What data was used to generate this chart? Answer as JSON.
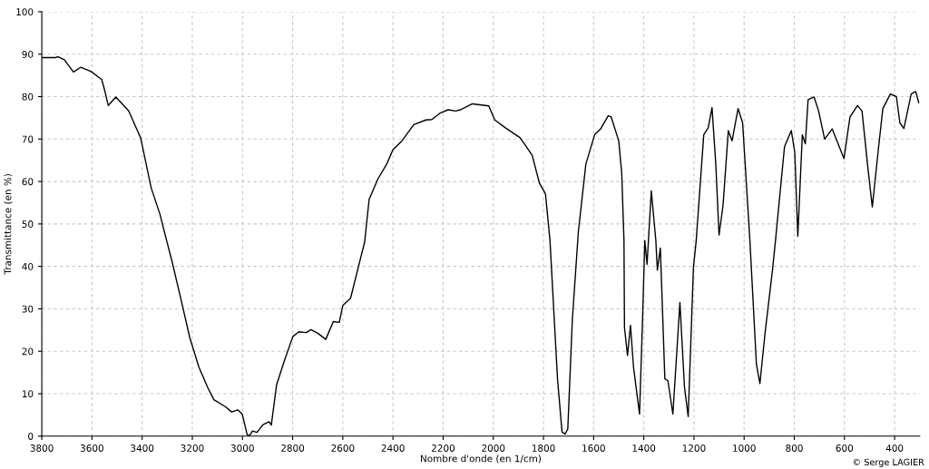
{
  "chart_data": {
    "type": "line",
    "xlabel": "Nombre d'onde (en 1/cm)",
    "ylabel": "Transmittance (en %)",
    "xlim": [
      3800,
      300
    ],
    "ylim": [
      0,
      100
    ],
    "xticks": [
      3800,
      3600,
      3400,
      3200,
      3000,
      2800,
      2600,
      2400,
      2200,
      2000,
      1800,
      1600,
      1400,
      1200,
      1000,
      800,
      600,
      400
    ],
    "yticks": [
      0,
      10,
      20,
      30,
      40,
      50,
      60,
      70,
      80,
      90,
      100
    ],
    "grid": true,
    "marker": "none",
    "line_style": "solid",
    "annotations": [
      "© Serge LAGIER"
    ],
    "series": [
      {
        "color": "#000000",
        "x": [
          3800,
          3745,
          3735,
          3710,
          3674,
          3645,
          3603,
          3561,
          3549,
          3535,
          3505,
          3454,
          3424,
          3406,
          3364,
          3329,
          3305,
          3281,
          3245,
          3210,
          3174,
          3138,
          3114,
          3067,
          3043,
          3019,
          3001,
          2981,
          2971,
          2960,
          2942,
          2918,
          2894,
          2885,
          2864,
          2834,
          2799,
          2775,
          2745,
          2727,
          2698,
          2668,
          2638,
          2614,
          2600,
          2569,
          2531,
          2513,
          2495,
          2460,
          2425,
          2400,
          2364,
          2317,
          2269,
          2245,
          2210,
          2180,
          2150,
          2131,
          2083,
          2018,
          1994,
          1953,
          1893,
          1845,
          1816,
          1792,
          1774,
          1744,
          1726,
          1714,
          1703,
          1685,
          1661,
          1631,
          1596,
          1572,
          1542,
          1530,
          1500,
          1488,
          1479,
          1477,
          1465,
          1453,
          1441,
          1417,
          1405,
          1396,
          1387,
          1370,
          1352,
          1346,
          1334,
          1316,
          1304,
          1284,
          1256,
          1238,
          1223,
          1202,
          1191,
          1161,
          1143,
          1128,
          1113,
          1100,
          1084,
          1063,
          1048,
          1024,
          1006,
          977,
          951,
          937,
          916,
          887,
          875,
          839,
          812,
          798,
          786,
          768,
          756,
          745,
          721,
          703,
          679,
          649,
          602,
          578,
          548,
          530,
          507,
          489,
          465,
          447,
          417,
          393,
          379,
          363,
          334,
          316,
          304
        ],
        "values": [
          89.2,
          89.2,
          89.4,
          88.7,
          85.8,
          86.9,
          85.9,
          84.0,
          81.4,
          77.9,
          79.9,
          76.7,
          72.7,
          70.3,
          58.5,
          52.3,
          46.7,
          41.2,
          32.2,
          23.2,
          16.3,
          11.4,
          8.6,
          6.9,
          5.7,
          6.2,
          5.2,
          0.3,
          0.2,
          1.2,
          0.9,
          2.7,
          3.4,
          2.6,
          12.1,
          17.6,
          23.5,
          24.6,
          24.4,
          25.1,
          24.2,
          22.8,
          27.0,
          26.8,
          30.8,
          32.5,
          41.5,
          45.7,
          55.8,
          60.6,
          64.1,
          67.5,
          69.6,
          73.4,
          74.5,
          74.6,
          76.2,
          76.9,
          76.6,
          76.9,
          78.3,
          77.8,
          74.5,
          72.7,
          70.3,
          66.2,
          59.6,
          57.1,
          46.1,
          13.5,
          1.0,
          0.5,
          1.7,
          27.3,
          48.1,
          64.1,
          71.0,
          72.4,
          75.5,
          75.2,
          69.6,
          62.0,
          46.1,
          25.6,
          19.0,
          26.1,
          16.3,
          5.2,
          27.3,
          46.1,
          40.5,
          57.8,
          46.1,
          39.1,
          44.3,
          13.5,
          13.1,
          5.2,
          31.5,
          11.7,
          4.6,
          39.8,
          46.1,
          71.0,
          72.7,
          77.4,
          64.1,
          47.4,
          54.4,
          72.0,
          69.6,
          77.2,
          73.8,
          46.1,
          16.9,
          12.4,
          24.6,
          39.1,
          46.1,
          68.2,
          72.0,
          66.8,
          47.1,
          71.0,
          68.9,
          79.3,
          79.9,
          76.6,
          70.0,
          72.4,
          65.4,
          75.2,
          77.9,
          76.6,
          63.4,
          54.0,
          67.5,
          77.2,
          80.6,
          80.0,
          73.8,
          72.5,
          80.6,
          81.2,
          78.6
        ]
      }
    ]
  }
}
